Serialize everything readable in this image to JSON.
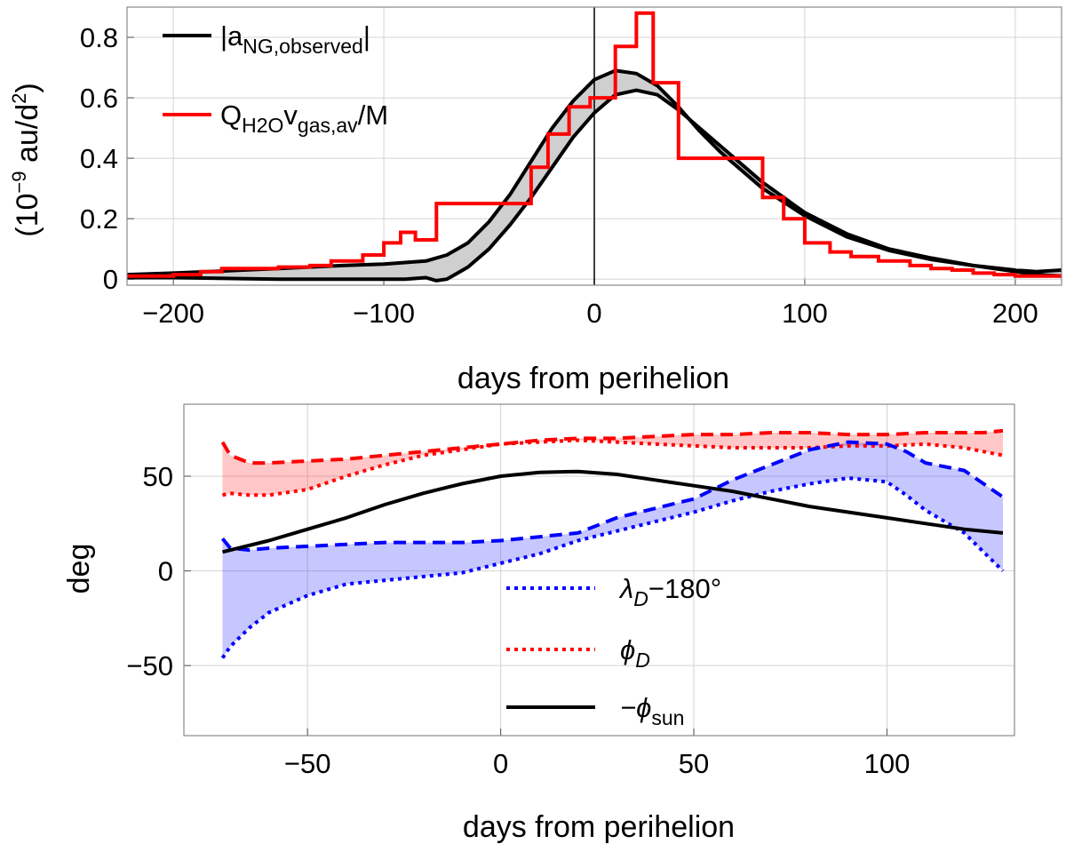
{
  "chart_data": [
    {
      "type": "line",
      "title": "",
      "xlabel": "days from perihelion",
      "ylabel_parts": {
        "base": "(10",
        "sup1": "−9",
        "mid": " au/d",
        "sup2": "2",
        "end": ")"
      },
      "xlim": [
        -222,
        222
      ],
      "ylim": [
        -0.02,
        0.9
      ],
      "xticks": [
        -200,
        -100,
        0,
        100,
        200
      ],
      "xtick_labels": [
        "−200",
        "−100",
        "0",
        "100",
        "200"
      ],
      "yticks": [
        0,
        0.2,
        0.4,
        0.6,
        0.8
      ],
      "ytick_labels": [
        "0",
        "0.2",
        "0.4",
        "0.6",
        "0.8"
      ],
      "vertical_line_x": 0,
      "legend": [
        {
          "base": "|a",
          "sub": "NG,observed",
          "end": "|",
          "color": "#000000"
        },
        {
          "base": "Q",
          "sub": "H2O",
          "mid": "v",
          "sub2": "gas,av",
          "end": "/M",
          "color": "#ff0000"
        }
      ],
      "series": [
        {
          "name": "|aNG,observed| upper",
          "color": "#000000",
          "points": [
            [
              -222,
              0.015
            ],
            [
              -200,
              0.02
            ],
            [
              -150,
              0.035
            ],
            [
              -120,
              0.045
            ],
            [
              -100,
              0.05
            ],
            [
              -90,
              0.055
            ],
            [
              -80,
              0.06
            ],
            [
              -70,
              0.08
            ],
            [
              -60,
              0.12
            ],
            [
              -50,
              0.19
            ],
            [
              -40,
              0.28
            ],
            [
              -30,
              0.39
            ],
            [
              -20,
              0.5
            ],
            [
              -10,
              0.59
            ],
            [
              0,
              0.66
            ],
            [
              10,
              0.69
            ],
            [
              20,
              0.68
            ],
            [
              30,
              0.64
            ],
            [
              40,
              0.57
            ],
            [
              50,
              0.49
            ],
            [
              60,
              0.42
            ],
            [
              80,
              0.3
            ],
            [
              100,
              0.21
            ],
            [
              120,
              0.14
            ],
            [
              140,
              0.095
            ],
            [
              160,
              0.065
            ],
            [
              180,
              0.045
            ],
            [
              200,
              0.03
            ],
            [
              210,
              0.025
            ],
            [
              222,
              0.03
            ]
          ]
        },
        {
          "name": "|aNG,observed| lower",
          "color": "#000000",
          "points": [
            [
              -222,
              0.005
            ],
            [
              -200,
              0.005
            ],
            [
              -150,
              0.0
            ],
            [
              -120,
              0.0
            ],
            [
              -100,
              0.0
            ],
            [
              -90,
              0.0
            ],
            [
              -80,
              0.005
            ],
            [
              -75,
              -0.005
            ],
            [
              -70,
              0.0
            ],
            [
              -60,
              0.04
            ],
            [
              -50,
              0.1
            ],
            [
              -40,
              0.18
            ],
            [
              -30,
              0.27
            ],
            [
              -20,
              0.37
            ],
            [
              -10,
              0.47
            ],
            [
              0,
              0.55
            ],
            [
              10,
              0.61
            ],
            [
              20,
              0.625
            ],
            [
              30,
              0.61
            ],
            [
              40,
              0.56
            ],
            [
              50,
              0.5
            ],
            [
              60,
              0.44
            ],
            [
              80,
              0.32
            ],
            [
              100,
              0.22
            ],
            [
              120,
              0.15
            ],
            [
              140,
              0.1
            ],
            [
              160,
              0.07
            ],
            [
              180,
              0.045
            ],
            [
              200,
              0.025
            ],
            [
              210,
              0.015
            ],
            [
              222,
              0.01
            ]
          ]
        }
      ],
      "histogram": {
        "name": "QH2O vgas,av/M",
        "color": "#ff0000",
        "edges": [
          -222,
          -200,
          -187,
          -177,
          -150,
          -135,
          -125,
          -110,
          -100,
          -92,
          -85,
          -75,
          -60,
          -45,
          -30,
          -22,
          -12,
          -2,
          10,
          20,
          28,
          40,
          60,
          80,
          90,
          100,
          112,
          122,
          135,
          150,
          160,
          170,
          180,
          190,
          200,
          222
        ],
        "values": [
          0.01,
          0.015,
          0.025,
          0.035,
          0.04,
          0.045,
          0.06,
          0.08,
          0.12,
          0.155,
          0.13,
          0.25,
          0.25,
          0.25,
          0.37,
          0.48,
          0.57,
          0.6,
          0.77,
          0.88,
          0.65,
          0.4,
          0.4,
          0.27,
          0.2,
          0.12,
          0.09,
          0.075,
          0.06,
          0.045,
          0.035,
          0.03,
          0.02,
          0.015,
          0.01
        ]
      }
    },
    {
      "type": "line",
      "title": "",
      "xlabel": "days from perihelion",
      "ylabel": "deg",
      "xlim": [
        -82,
        133
      ],
      "ylim": [
        -87,
        88
      ],
      "xticks": [
        -50,
        0,
        50,
        100
      ],
      "xtick_labels": [
        "−50",
        "0",
        "50",
        "100"
      ],
      "yticks": [
        -50,
        0,
        50
      ],
      "ytick_labels": [
        "−50",
        "0",
        "50"
      ],
      "legend": [
        {
          "base": "λ",
          "sub": "D",
          "end": "−180°",
          "color": "#0000ff",
          "style": "dotted"
        },
        {
          "base": "ϕ",
          "sub": "D",
          "end": "",
          "color": "#ff0000",
          "style": "dotted"
        },
        {
          "base": "−ϕ",
          "sub": "sun",
          "end": "",
          "color": "#000000",
          "style": "solid"
        }
      ],
      "series": [
        {
          "name": "phi_D upper (dashed)",
          "color": "#ff0000",
          "style": "dashed",
          "points": [
            [
              -72,
              68
            ],
            [
              -70,
              61
            ],
            [
              -65,
              57
            ],
            [
              -60,
              57
            ],
            [
              -50,
              58
            ],
            [
              -40,
              59
            ],
            [
              -30,
              61
            ],
            [
              -20,
              63
            ],
            [
              -10,
              65
            ],
            [
              0,
              67
            ],
            [
              10,
              69
            ],
            [
              20,
              70
            ],
            [
              30,
              70
            ],
            [
              40,
              71
            ],
            [
              50,
              72
            ],
            [
              60,
              72
            ],
            [
              70,
              73
            ],
            [
              80,
              73
            ],
            [
              90,
              72
            ],
            [
              100,
              72
            ],
            [
              110,
              73
            ],
            [
              120,
              73
            ],
            [
              125,
              73
            ],
            [
              130,
              74
            ]
          ]
        },
        {
          "name": "phi_D lower (dotted)",
          "color": "#ff0000",
          "style": "dotted",
          "points": [
            [
              -72,
              40
            ],
            [
              -70,
              41
            ],
            [
              -65,
              40
            ],
            [
              -60,
              40
            ],
            [
              -50,
              43
            ],
            [
              -40,
              50
            ],
            [
              -30,
              56
            ],
            [
              -20,
              61
            ],
            [
              -10,
              64
            ],
            [
              0,
              67
            ],
            [
              10,
              68
            ],
            [
              20,
              69
            ],
            [
              30,
              68
            ],
            [
              40,
              67
            ],
            [
              50,
              66
            ],
            [
              60,
              65
            ],
            [
              70,
              65
            ],
            [
              80,
              65
            ],
            [
              90,
              66
            ],
            [
              100,
              66
            ],
            [
              110,
              67
            ],
            [
              120,
              65
            ],
            [
              125,
              63
            ],
            [
              130,
              61
            ]
          ]
        },
        {
          "name": "lambda_D upper (dashed)",
          "color": "#0000ff",
          "style": "dashed",
          "points": [
            [
              -72,
              17
            ],
            [
              -70,
              12
            ],
            [
              -65,
              11
            ],
            [
              -60,
              12
            ],
            [
              -50,
              13
            ],
            [
              -40,
              14
            ],
            [
              -30,
              15
            ],
            [
              -20,
              15
            ],
            [
              -10,
              15
            ],
            [
              0,
              16
            ],
            [
              10,
              18
            ],
            [
              20,
              20
            ],
            [
              30,
              28
            ],
            [
              40,
              33
            ],
            [
              50,
              38
            ],
            [
              60,
              48
            ],
            [
              70,
              56
            ],
            [
              80,
              64
            ],
            [
              90,
              68
            ],
            [
              100,
              67
            ],
            [
              105,
              63
            ],
            [
              110,
              57
            ],
            [
              120,
              53
            ],
            [
              125,
              46
            ],
            [
              130,
              39
            ]
          ]
        },
        {
          "name": "lambda_D lower (dotted)",
          "color": "#0000ff",
          "style": "dotted",
          "points": [
            [
              -72,
              -46
            ],
            [
              -70,
              -40
            ],
            [
              -65,
              -30
            ],
            [
              -60,
              -22
            ],
            [
              -50,
              -13
            ],
            [
              -40,
              -7
            ],
            [
              -30,
              -5
            ],
            [
              -20,
              -3
            ],
            [
              -10,
              -1
            ],
            [
              0,
              4
            ],
            [
              10,
              9
            ],
            [
              20,
              16
            ],
            [
              30,
              21
            ],
            [
              40,
              26
            ],
            [
              50,
              31
            ],
            [
              60,
              37
            ],
            [
              70,
              42
            ],
            [
              80,
              46
            ],
            [
              90,
              49
            ],
            [
              100,
              47
            ],
            [
              105,
              40
            ],
            [
              110,
              32
            ],
            [
              120,
              20
            ],
            [
              125,
              10
            ],
            [
              130,
              0
            ]
          ]
        },
        {
          "name": "-phi_sun",
          "color": "#000000",
          "style": "solid",
          "points": [
            [
              -72,
              10
            ],
            [
              -60,
              16
            ],
            [
              -50,
              22
            ],
            [
              -40,
              28
            ],
            [
              -30,
              35
            ],
            [
              -20,
              41
            ],
            [
              -10,
              46
            ],
            [
              0,
              50
            ],
            [
              10,
              52
            ],
            [
              20,
              52.5
            ],
            [
              30,
              51
            ],
            [
              40,
              48
            ],
            [
              50,
              45
            ],
            [
              60,
              42
            ],
            [
              70,
              38
            ],
            [
              80,
              34
            ],
            [
              90,
              31
            ],
            [
              100,
              28
            ],
            [
              110,
              25
            ],
            [
              120,
              22
            ],
            [
              130,
              20
            ]
          ]
        }
      ]
    }
  ]
}
